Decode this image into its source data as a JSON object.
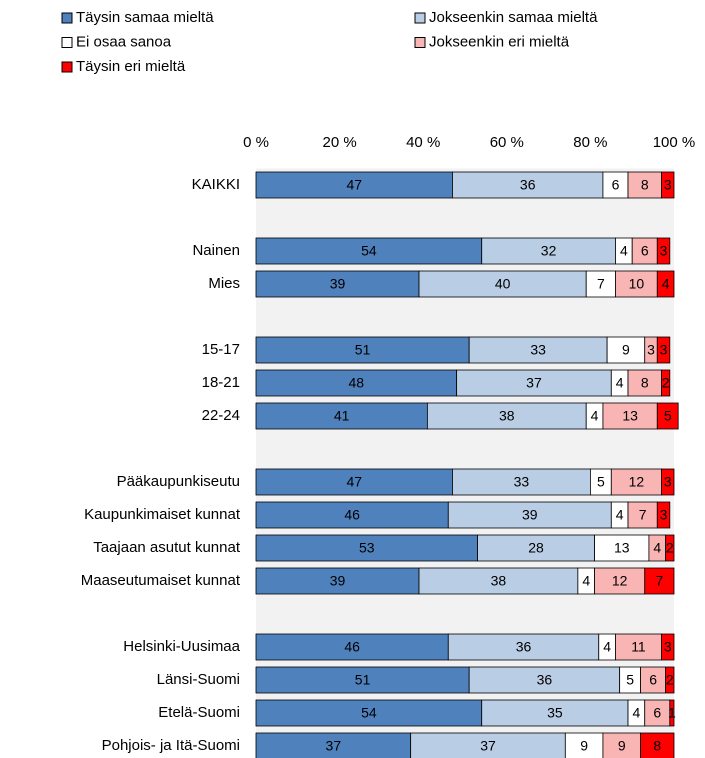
{
  "chart_data": {
    "type": "stacked_barh",
    "categories": [
      "KAIKKI",
      null,
      "Nainen",
      "Mies",
      null,
      "15-17",
      "18-21",
      "22-24",
      null,
      "Pääkaupunkiseutu",
      "Kaupunkimaiset kunnat",
      "Taajaan asutut kunnat",
      "Maaseutumaiset kunnat",
      null,
      "Helsinki-Uusimaa",
      "Länsi-Suomi",
      "Etelä-Suomi",
      "Pohjois- ja Itä-Suomi"
    ],
    "series": [
      {
        "name": "Täysin samaa mieltä",
        "color": "#4f81bd",
        "values": [
          47,
          null,
          54,
          39,
          null,
          51,
          48,
          41,
          null,
          47,
          46,
          53,
          39,
          null,
          46,
          51,
          54,
          37
        ]
      },
      {
        "name": "Jokseenkin samaa mieltä",
        "color": "#b9cde5",
        "values": [
          36,
          null,
          32,
          40,
          null,
          33,
          37,
          38,
          null,
          33,
          39,
          28,
          38,
          null,
          36,
          36,
          35,
          37
        ]
      },
      {
        "name": "Ei osaa sanoa",
        "color": "#ffffff",
        "values": [
          6,
          null,
          4,
          7,
          null,
          9,
          4,
          4,
          null,
          5,
          4,
          13,
          4,
          null,
          4,
          5,
          4,
          9
        ]
      },
      {
        "name": "Jokseenkin eri mieltä",
        "color": "#f9b4b4",
        "values": [
          8,
          null,
          6,
          10,
          null,
          3,
          8,
          13,
          null,
          12,
          7,
          4,
          12,
          null,
          11,
          6,
          6,
          9
        ]
      },
      {
        "name": "Täysin eri mieltä",
        "color": "#ff0000",
        "values": [
          3,
          null,
          3,
          4,
          null,
          3,
          2,
          5,
          null,
          3,
          3,
          2,
          7,
          null,
          3,
          2,
          1,
          8
        ]
      }
    ],
    "xlim": [
      0,
      100
    ],
    "xticks": [
      {
        "value": 0,
        "label": "0 %"
      },
      {
        "value": 20,
        "label": "20 %"
      },
      {
        "value": 40,
        "label": "40 %"
      },
      {
        "value": 60,
        "label": "60 %"
      },
      {
        "value": 80,
        "label": "80 %"
      },
      {
        "value": 100,
        "label": "100 %"
      }
    ],
    "label_colors": [
      "#ffffff",
      "#000000",
      "#000000",
      "#000000",
      "#ffffff"
    ],
    "background": "#f2f2f2"
  }
}
